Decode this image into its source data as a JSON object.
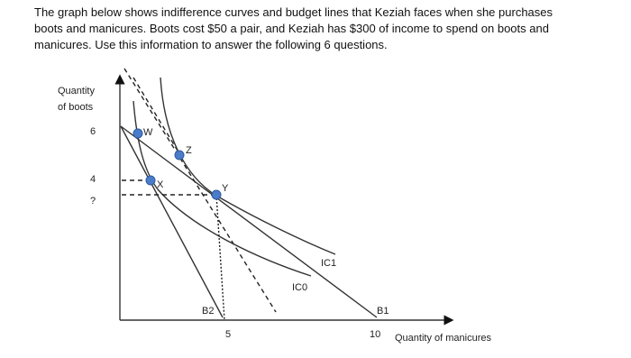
{
  "question": {
    "lines": [
      "The graph below shows indifference curves and budget lines that Keziah faces when she purchases",
      "boots and manicures. Boots cost $50 a pair, and Keziah has $300 of income to spend on boots and",
      "manicures. Use this information to answer the following 6 questions."
    ]
  },
  "graph": {
    "y_axis_label": [
      "Quantity",
      "of boots"
    ],
    "x_axis_label": "Quantity of manicures",
    "y_ticks": [
      "6",
      "4",
      "?"
    ],
    "x_ticks": [
      "5",
      "10"
    ],
    "points": [
      "W",
      "X",
      "Z",
      "Y"
    ],
    "curve_labels": [
      "IC1",
      "IC0",
      "B2",
      "B1"
    ]
  }
}
